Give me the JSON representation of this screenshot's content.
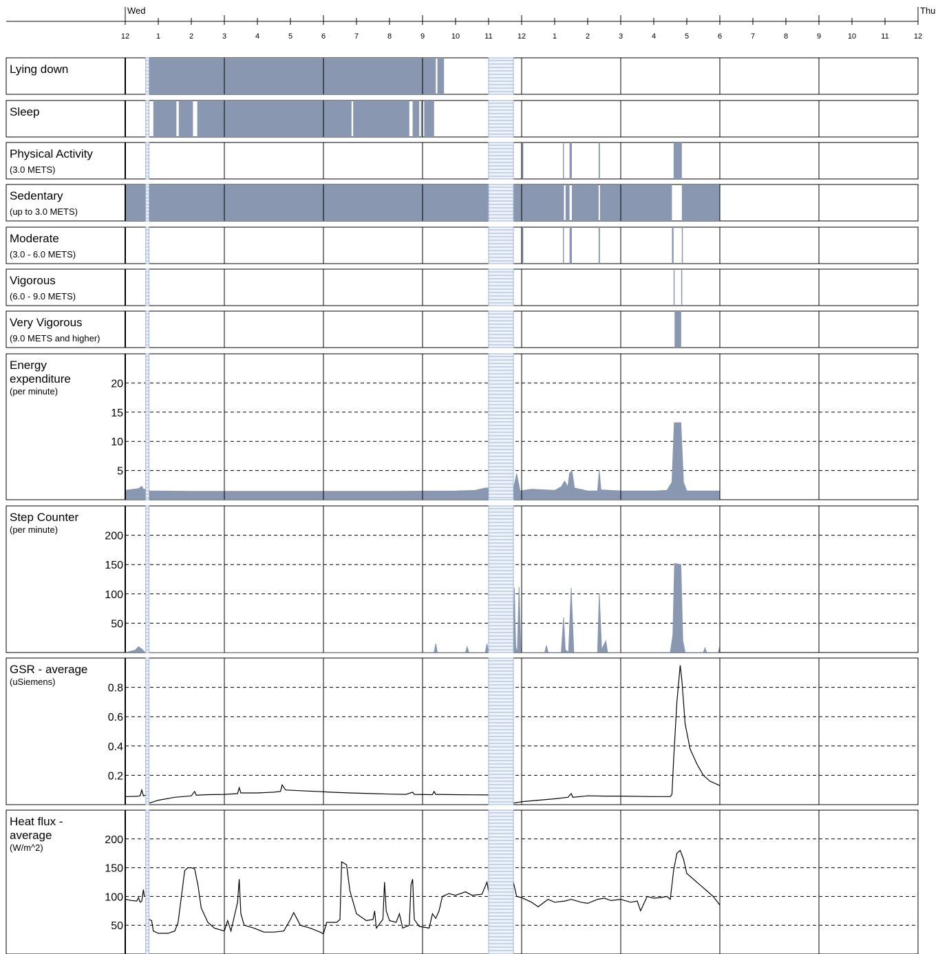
{
  "timeline": {
    "days": [
      "Wed",
      "Thu"
    ],
    "hour_ticks": [
      "12",
      "1",
      "2",
      "3",
      "4",
      "5",
      "6",
      "7",
      "8",
      "9",
      "10",
      "11",
      "12",
      "1",
      "2",
      "3",
      "4",
      "5",
      "6",
      "7",
      "8",
      "9",
      "10",
      "11",
      "12"
    ]
  },
  "colors": {
    "fill": "#8a97b0",
    "line": "#000000",
    "gap": "#9fb2d6",
    "gap_fill": "#eef2fa",
    "grid": "#000000"
  },
  "gap_bands": [
    [
      0.62,
      0.72
    ],
    [
      11.0,
      11.75
    ]
  ],
  "chart_data": [
    {
      "id": "lying",
      "type": "timeline",
      "title": "Lying down",
      "subtitle": "",
      "segments": [
        [
          0.72,
          9.4
        ],
        [
          9.45,
          9.65
        ]
      ]
    },
    {
      "id": "sleep",
      "type": "timeline",
      "title": "Sleep",
      "subtitle": "",
      "segments": [
        [
          0.85,
          1.55
        ],
        [
          1.62,
          2.05
        ],
        [
          2.18,
          6.85
        ],
        [
          6.9,
          8.6
        ],
        [
          8.7,
          8.9
        ],
        [
          8.95,
          9.0
        ],
        [
          9.05,
          9.35
        ]
      ]
    },
    {
      "id": "physical",
      "type": "timeline",
      "title": "Physical Activity",
      "subtitle": "(3.0 METS)",
      "segments": [
        [
          12.0,
          12.05
        ],
        [
          13.25,
          13.28
        ],
        [
          13.45,
          13.52
        ],
        [
          14.33,
          14.37
        ],
        [
          16.6,
          16.85
        ]
      ]
    },
    {
      "id": "sedentary",
      "type": "timeline",
      "title": "Sedentary",
      "subtitle": "(up to 3.0 METS)",
      "segments": [
        [
          0.0,
          0.62
        ],
        [
          0.72,
          11.0
        ],
        [
          11.75,
          13.28
        ],
        [
          13.33,
          13.45
        ],
        [
          13.52,
          14.33
        ],
        [
          14.37,
          16.55
        ],
        [
          16.85,
          18.0
        ]
      ]
    },
    {
      "id": "moderate",
      "type": "timeline",
      "title": "Moderate",
      "subtitle": "(3.0 - 6.0 METS)",
      "segments": [
        [
          12.0,
          12.05
        ],
        [
          13.25,
          13.28
        ],
        [
          13.45,
          13.52
        ],
        [
          14.33,
          14.37
        ],
        [
          16.55,
          16.6
        ],
        [
          16.85,
          16.88
        ]
      ]
    },
    {
      "id": "vigorous",
      "type": "timeline",
      "title": "Vigorous",
      "subtitle": "(6.0 - 9.0 METS)",
      "segments": [
        [
          16.6,
          16.63
        ],
        [
          16.83,
          16.86
        ]
      ]
    },
    {
      "id": "very_vigorous",
      "type": "timeline",
      "title": "Very Vigorous",
      "subtitle": "(9.0 METS and higher)",
      "segments": [
        [
          16.63,
          16.83
        ]
      ]
    },
    {
      "id": "energy",
      "type": "area",
      "title": "Energy expenditure",
      "subtitle": "(per minute)",
      "ylim": [
        0,
        25
      ],
      "yticks": [
        5,
        10,
        15,
        20
      ],
      "points": [
        [
          0,
          1.6
        ],
        [
          0.4,
          1.9
        ],
        [
          0.5,
          2.3
        ],
        [
          0.55,
          1.8
        ],
        [
          0.62,
          1.8
        ],
        [
          0.72,
          1.5
        ],
        [
          2,
          1.45
        ],
        [
          4,
          1.45
        ],
        [
          6,
          1.45
        ],
        [
          8,
          1.45
        ],
        [
          10,
          1.5
        ],
        [
          10.6,
          1.6
        ],
        [
          10.9,
          2.0
        ],
        [
          11.0,
          2.0
        ],
        [
          11.75,
          1.8
        ],
        [
          11.85,
          4.5
        ],
        [
          11.95,
          1.5
        ],
        [
          12.3,
          1.8
        ],
        [
          13.0,
          1.6
        ],
        [
          13.2,
          2.2
        ],
        [
          13.3,
          3.2
        ],
        [
          13.4,
          2.2
        ],
        [
          13.45,
          4.5
        ],
        [
          13.52,
          5.0
        ],
        [
          13.6,
          2.0
        ],
        [
          14.0,
          1.5
        ],
        [
          14.3,
          1.5
        ],
        [
          14.35,
          5.0
        ],
        [
          14.4,
          1.7
        ],
        [
          15.0,
          1.5
        ],
        [
          15.5,
          1.5
        ],
        [
          16.0,
          1.5
        ],
        [
          16.4,
          1.6
        ],
        [
          16.55,
          3.0
        ],
        [
          16.62,
          13.2
        ],
        [
          16.82,
          13.2
        ],
        [
          16.9,
          3.0
        ],
        [
          17.0,
          1.5
        ],
        [
          18.0,
          1.5
        ]
      ]
    },
    {
      "id": "steps",
      "type": "area",
      "title": "Step Counter",
      "subtitle": "(per minute)",
      "ylim": [
        0,
        250
      ],
      "yticks": [
        50,
        100,
        150,
        200
      ],
      "points": [
        [
          0,
          0
        ],
        [
          0.3,
          4
        ],
        [
          0.4,
          10
        ],
        [
          0.5,
          6
        ],
        [
          0.6,
          0
        ],
        [
          0.72,
          0
        ],
        [
          9.35,
          0
        ],
        [
          9.4,
          15
        ],
        [
          9.45,
          0
        ],
        [
          10.3,
          0
        ],
        [
          10.35,
          10
        ],
        [
          10.4,
          0
        ],
        [
          10.9,
          0
        ],
        [
          10.95,
          15
        ],
        [
          11.0,
          0
        ],
        [
          11.75,
          0
        ],
        [
          11.78,
          110
        ],
        [
          11.82,
          10
        ],
        [
          11.87,
          0
        ],
        [
          11.92,
          112
        ],
        [
          11.98,
          0
        ],
        [
          12.7,
          0
        ],
        [
          12.75,
          12
        ],
        [
          12.8,
          0
        ],
        [
          13.2,
          0
        ],
        [
          13.27,
          60
        ],
        [
          13.32,
          5
        ],
        [
          13.42,
          0
        ],
        [
          13.5,
          110
        ],
        [
          13.58,
          0
        ],
        [
          14.3,
          0
        ],
        [
          14.35,
          100
        ],
        [
          14.42,
          5
        ],
        [
          14.55,
          20
        ],
        [
          14.6,
          0
        ],
        [
          16.5,
          0
        ],
        [
          16.58,
          30
        ],
        [
          16.63,
          152
        ],
        [
          16.82,
          150
        ],
        [
          16.88,
          20
        ],
        [
          16.95,
          0
        ],
        [
          17.5,
          0
        ],
        [
          17.55,
          8
        ],
        [
          17.6,
          0
        ],
        [
          17.95,
          0
        ],
        [
          18.0,
          10
        ]
      ]
    },
    {
      "id": "gsr",
      "type": "line",
      "title": "GSR - average",
      "subtitle": "(uSiemens)",
      "ylim": [
        0,
        1.0
      ],
      "yticks": [
        0.2,
        0.4,
        0.6,
        0.8
      ],
      "segments": [
        [
          [
            0,
            0.055
          ],
          [
            0.35,
            0.057
          ],
          [
            0.45,
            0.06
          ],
          [
            0.5,
            0.1
          ],
          [
            0.55,
            0.06
          ],
          [
            0.62,
            0.065
          ]
        ],
        [
          [
            0.72,
            0.01
          ],
          [
            1.0,
            0.03
          ],
          [
            1.5,
            0.05
          ],
          [
            2.0,
            0.06
          ],
          [
            2.1,
            0.09
          ],
          [
            2.15,
            0.065
          ],
          [
            2.5,
            0.068
          ],
          [
            3.0,
            0.07
          ],
          [
            3.4,
            0.075
          ],
          [
            3.45,
            0.115
          ],
          [
            3.5,
            0.08
          ],
          [
            4.0,
            0.08
          ],
          [
            4.5,
            0.085
          ],
          [
            4.7,
            0.09
          ],
          [
            4.75,
            0.135
          ],
          [
            4.85,
            0.1
          ],
          [
            5.3,
            0.095
          ],
          [
            5.8,
            0.09
          ],
          [
            6.2,
            0.085
          ],
          [
            6.8,
            0.08
          ],
          [
            7.5,
            0.075
          ],
          [
            8.0,
            0.072
          ],
          [
            8.5,
            0.07
          ],
          [
            8.7,
            0.085
          ],
          [
            8.75,
            0.07
          ],
          [
            9.3,
            0.068
          ],
          [
            9.35,
            0.09
          ],
          [
            9.4,
            0.07
          ],
          [
            10.0,
            0.068
          ],
          [
            10.5,
            0.067
          ],
          [
            11.0,
            0.066
          ]
        ],
        [
          [
            11.75,
            0.01
          ],
          [
            12.0,
            0.02
          ],
          [
            12.5,
            0.03
          ],
          [
            13.0,
            0.04
          ],
          [
            13.4,
            0.05
          ],
          [
            13.5,
            0.075
          ],
          [
            13.55,
            0.05
          ],
          [
            14.0,
            0.06
          ],
          [
            14.5,
            0.058
          ],
          [
            15.0,
            0.058
          ],
          [
            16.0,
            0.055
          ],
          [
            16.5,
            0.055
          ],
          [
            16.55,
            0.07
          ],
          [
            16.6,
            0.3
          ],
          [
            16.7,
            0.7
          ],
          [
            16.8,
            0.95
          ],
          [
            16.85,
            0.85
          ],
          [
            16.95,
            0.55
          ],
          [
            17.1,
            0.38
          ],
          [
            17.3,
            0.28
          ],
          [
            17.5,
            0.2
          ],
          [
            17.7,
            0.16
          ],
          [
            18.0,
            0.13
          ]
        ]
      ]
    },
    {
      "id": "heat",
      "type": "line",
      "title": "Heat flux - average",
      "subtitle": "(W/m^2)",
      "ylim": [
        0,
        250
      ],
      "yticks": [
        50,
        100,
        150,
        200
      ],
      "segments": [
        [
          [
            0,
            95
          ],
          [
            0.2,
            93
          ],
          [
            0.35,
            92
          ],
          [
            0.4,
            98
          ],
          [
            0.45,
            90
          ],
          [
            0.5,
            92
          ],
          [
            0.55,
            112
          ],
          [
            0.58,
            100
          ]
        ],
        [
          [
            0.72,
            60
          ],
          [
            0.8,
            58
          ],
          [
            0.85,
            40
          ],
          [
            1.0,
            36
          ],
          [
            1.3,
            36
          ],
          [
            1.5,
            40
          ],
          [
            1.6,
            55
          ],
          [
            1.7,
            100
          ],
          [
            1.8,
            145
          ],
          [
            1.9,
            150
          ],
          [
            2.0,
            150
          ],
          [
            2.1,
            148
          ],
          [
            2.2,
            120
          ],
          [
            2.3,
            80
          ],
          [
            2.5,
            55
          ],
          [
            2.7,
            45
          ],
          [
            3.0,
            40
          ],
          [
            3.1,
            58
          ],
          [
            3.2,
            40
          ],
          [
            3.4,
            90
          ],
          [
            3.45,
            130
          ],
          [
            3.5,
            70
          ],
          [
            3.6,
            50
          ],
          [
            3.9,
            45
          ],
          [
            4.2,
            38
          ],
          [
            4.5,
            38
          ],
          [
            4.8,
            40
          ],
          [
            5.0,
            60
          ],
          [
            5.1,
            72
          ],
          [
            5.3,
            50
          ],
          [
            5.6,
            45
          ],
          [
            5.9,
            38
          ],
          [
            6.0,
            35
          ],
          [
            6.1,
            55
          ],
          [
            6.4,
            55
          ],
          [
            6.5,
            60
          ],
          [
            6.55,
            160
          ],
          [
            6.7,
            155
          ],
          [
            6.8,
            110
          ],
          [
            7.0,
            70
          ],
          [
            7.3,
            58
          ],
          [
            7.5,
            60
          ],
          [
            7.55,
            75
          ],
          [
            7.6,
            45
          ],
          [
            7.8,
            60
          ],
          [
            7.85,
            125
          ],
          [
            7.9,
            75
          ],
          [
            8.0,
            58
          ],
          [
            8.2,
            55
          ],
          [
            8.3,
            70
          ],
          [
            8.4,
            45
          ],
          [
            8.6,
            50
          ],
          [
            8.65,
            120
          ],
          [
            8.7,
            130
          ],
          [
            8.75,
            60
          ],
          [
            8.9,
            48
          ],
          [
            9.2,
            45
          ],
          [
            9.3,
            70
          ],
          [
            9.4,
            62
          ],
          [
            9.5,
            75
          ],
          [
            9.6,
            100
          ],
          [
            9.8,
            105
          ],
          [
            10.0,
            102
          ],
          [
            10.3,
            108
          ],
          [
            10.5,
            102
          ],
          [
            10.8,
            104
          ],
          [
            10.95,
            125
          ],
          [
            11.0,
            108
          ]
        ],
        [
          [
            11.75,
            125
          ],
          [
            11.85,
            100
          ],
          [
            12.0,
            98
          ],
          [
            12.3,
            90
          ],
          [
            12.5,
            82
          ],
          [
            12.8,
            95
          ],
          [
            13.0,
            90
          ],
          [
            13.3,
            92
          ],
          [
            13.5,
            95
          ],
          [
            13.8,
            90
          ],
          [
            14.0,
            88
          ],
          [
            14.3,
            95
          ],
          [
            14.5,
            97
          ],
          [
            14.7,
            93
          ],
          [
            15.0,
            95
          ],
          [
            15.3,
            90
          ],
          [
            15.5,
            92
          ],
          [
            15.6,
            75
          ],
          [
            15.8,
            100
          ],
          [
            16.0,
            97
          ],
          [
            16.2,
            98
          ],
          [
            16.4,
            100
          ],
          [
            16.5,
            95
          ],
          [
            16.6,
            145
          ],
          [
            16.7,
            175
          ],
          [
            16.8,
            180
          ],
          [
            16.9,
            165
          ],
          [
            17.0,
            140
          ],
          [
            17.3,
            125
          ],
          [
            17.6,
            110
          ],
          [
            17.8,
            100
          ],
          [
            18.0,
            85
          ]
        ]
      ]
    }
  ]
}
